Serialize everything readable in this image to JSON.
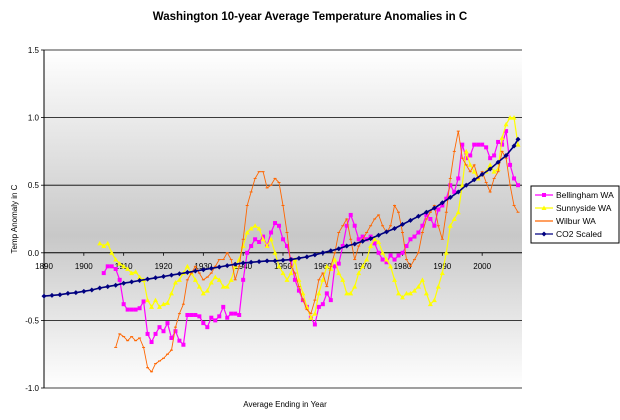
{
  "chart_data": {
    "type": "line",
    "title": "Washington 10-year Average Temperature Anomalies in C",
    "xlabel": "Average Ending in Year",
    "ylabel": "Temp Anomaly in C",
    "xlim": [
      1890,
      2010
    ],
    "ylim": [
      -1.0,
      1.5
    ],
    "yticks": [
      "1.5",
      "1.0",
      "0.5",
      "0.0",
      "-0.5",
      "-1.0"
    ],
    "xticks": [
      "1890",
      "1900",
      "1910",
      "1920",
      "1930",
      "1940",
      "1950",
      "1960",
      "1970",
      "1980",
      "1990",
      "2000"
    ],
    "grid": "horizontal",
    "legend_position": "right",
    "series": [
      {
        "name": "Bellingham WA",
        "color": "#ff00ff",
        "marker": "square",
        "x": [
          1905,
          1906,
          1907,
          1908,
          1909,
          1910,
          1911,
          1912,
          1913,
          1914,
          1915,
          1916,
          1917,
          1918,
          1919,
          1920,
          1921,
          1922,
          1923,
          1924,
          1925,
          1926,
          1927,
          1928,
          1929,
          1930,
          1931,
          1932,
          1933,
          1934,
          1935,
          1936,
          1937,
          1938,
          1939,
          1940,
          1941,
          1942,
          1943,
          1944,
          1945,
          1946,
          1947,
          1948,
          1949,
          1950,
          1951,
          1952,
          1953,
          1954,
          1955,
          1956,
          1957,
          1958,
          1959,
          1960,
          1961,
          1962,
          1963,
          1964,
          1965,
          1966,
          1967,
          1968,
          1969,
          1970,
          1971,
          1972,
          1973,
          1974,
          1975,
          1976,
          1977,
          1978,
          1979,
          1980,
          1981,
          1982,
          1983,
          1984,
          1985,
          1986,
          1987,
          1988,
          1989,
          1990,
          1991,
          1992,
          1993,
          1994,
          1995,
          1996,
          1997,
          1998,
          1999,
          2000,
          2001,
          2002,
          2003,
          2004,
          2005,
          2006,
          2007,
          2008,
          2009
        ],
        "values": [
          -0.15,
          -0.1,
          -0.1,
          -0.12,
          -0.2,
          -0.38,
          -0.42,
          -0.42,
          -0.42,
          -0.41,
          -0.36,
          -0.6,
          -0.66,
          -0.6,
          -0.55,
          -0.58,
          -0.52,
          -0.63,
          -0.58,
          -0.65,
          -0.68,
          -0.46,
          -0.46,
          -0.46,
          -0.47,
          -0.52,
          -0.55,
          -0.48,
          -0.5,
          -0.47,
          -0.4,
          -0.48,
          -0.45,
          -0.45,
          -0.46,
          -0.2,
          0.0,
          0.05,
          0.1,
          0.08,
          0.12,
          0.05,
          0.15,
          0.22,
          0.2,
          0.1,
          0.05,
          -0.05,
          -0.2,
          -0.28,
          -0.35,
          -0.4,
          -0.48,
          -0.53,
          -0.4,
          -0.38,
          -0.3,
          -0.35,
          -0.1,
          -0.08,
          0.05,
          0.2,
          0.28,
          0.2,
          0.1,
          0.12,
          0.1,
          0.12,
          0.07,
          0.0,
          -0.05,
          -0.07,
          -0.02,
          -0.05,
          -0.02,
          0.0,
          0.05,
          0.1,
          0.12,
          0.15,
          0.2,
          0.28,
          0.25,
          0.2,
          0.32,
          0.35,
          0.4,
          0.5,
          0.45,
          0.55,
          0.8,
          0.7,
          0.72,
          0.8,
          0.8,
          0.8,
          0.78,
          0.7,
          0.72,
          0.82,
          0.8,
          0.9,
          0.65,
          0.55,
          0.5
        ]
      },
      {
        "name": "Sunnyside WA",
        "color": "#ffff00",
        "marker": "triangle",
        "x": [
          1904,
          1905,
          1906,
          1907,
          1908,
          1909,
          1910,
          1911,
          1912,
          1913,
          1914,
          1915,
          1916,
          1917,
          1918,
          1919,
          1920,
          1921,
          1922,
          1923,
          1924,
          1925,
          1926,
          1927,
          1928,
          1929,
          1930,
          1931,
          1932,
          1933,
          1934,
          1935,
          1936,
          1937,
          1938,
          1939,
          1940,
          1941,
          1942,
          1943,
          1944,
          1945,
          1946,
          1947,
          1948,
          1949,
          1950,
          1951,
          1952,
          1953,
          1954,
          1955,
          1956,
          1957,
          1958,
          1959,
          1960,
          1961,
          1962,
          1963,
          1964,
          1965,
          1966,
          1967,
          1968,
          1969,
          1970,
          1971,
          1972,
          1973,
          1974,
          1975,
          1976,
          1977,
          1978,
          1979,
          1980,
          1981,
          1982,
          1983,
          1984,
          1985,
          1986,
          1987,
          1988,
          1989,
          1990,
          1991,
          1992,
          1993,
          1994,
          1995,
          1996,
          1997,
          1998,
          1999,
          2000,
          2001,
          2002,
          2003,
          2004,
          2005,
          2006,
          2007,
          2008,
          2009
        ],
        "values": [
          0.07,
          0.05,
          0.07,
          0.0,
          -0.05,
          -0.08,
          -0.1,
          -0.12,
          -0.15,
          -0.14,
          -0.18,
          -0.2,
          -0.35,
          -0.4,
          -0.35,
          -0.4,
          -0.38,
          -0.37,
          -0.3,
          -0.22,
          -0.2,
          -0.15,
          -0.1,
          -0.15,
          -0.2,
          -0.25,
          -0.3,
          -0.28,
          -0.22,
          -0.18,
          -0.2,
          -0.25,
          -0.25,
          -0.2,
          -0.1,
          -0.05,
          0.05,
          0.15,
          0.18,
          0.2,
          0.18,
          0.1,
          0.05,
          0.1,
          0.0,
          -0.1,
          -0.15,
          -0.2,
          -0.15,
          -0.05,
          -0.2,
          -0.3,
          -0.4,
          -0.48,
          -0.45,
          -0.3,
          -0.2,
          -0.1,
          -0.12,
          -0.05,
          -0.15,
          -0.2,
          -0.3,
          -0.3,
          -0.25,
          -0.15,
          -0.1,
          -0.05,
          0.05,
          0.1,
          0.08,
          0.0,
          -0.05,
          -0.1,
          -0.2,
          -0.3,
          -0.33,
          -0.3,
          -0.3,
          -0.28,
          -0.25,
          -0.2,
          -0.3,
          -0.38,
          -0.35,
          -0.25,
          -0.15,
          0.0,
          0.2,
          0.25,
          0.3,
          0.5,
          0.75,
          0.65,
          0.6,
          0.55,
          0.58,
          0.6,
          0.65,
          0.6,
          0.62,
          0.85,
          0.95,
          1.0,
          1.0,
          0.8
        ]
      },
      {
        "name": "Wilbur WA",
        "color": "#ff6600",
        "marker": "dash",
        "x": [
          1908,
          1909,
          1910,
          1911,
          1912,
          1913,
          1914,
          1915,
          1916,
          1917,
          1918,
          1919,
          1920,
          1921,
          1922,
          1923,
          1924,
          1925,
          1926,
          1927,
          1928,
          1929,
          1930,
          1931,
          1932,
          1933,
          1934,
          1935,
          1936,
          1937,
          1938,
          1939,
          1940,
          1941,
          1942,
          1943,
          1944,
          1945,
          1946,
          1947,
          1948,
          1949,
          1950,
          1951,
          1952,
          1953,
          1954,
          1955,
          1956,
          1957,
          1958,
          1959,
          1960,
          1961,
          1962,
          1963,
          1964,
          1965,
          1966,
          1967,
          1968,
          1969,
          1970,
          1971,
          1972,
          1973,
          1974,
          1975,
          1976,
          1977,
          1978,
          1979,
          1980,
          1981,
          1982,
          1983,
          1984,
          1985,
          1986,
          1987,
          1988,
          1989,
          1990,
          1991,
          1992,
          1993,
          1994,
          1995,
          1996,
          1997,
          1998,
          1999,
          2000,
          2001,
          2002,
          2003,
          2004,
          2005,
          2006,
          2007,
          2008,
          2009
        ],
        "values": [
          -0.7,
          -0.6,
          -0.62,
          -0.65,
          -0.62,
          -0.65,
          -0.63,
          -0.7,
          -0.85,
          -0.88,
          -0.82,
          -0.8,
          -0.78,
          -0.75,
          -0.72,
          -0.55,
          -0.45,
          -0.38,
          -0.2,
          -0.15,
          -0.1,
          -0.15,
          -0.2,
          -0.18,
          -0.15,
          -0.1,
          -0.05,
          -0.05,
          0.0,
          -0.05,
          -0.2,
          -0.1,
          0.1,
          0.35,
          0.45,
          0.55,
          0.6,
          0.6,
          0.48,
          0.5,
          0.55,
          0.52,
          0.35,
          0.15,
          -0.1,
          -0.15,
          -0.25,
          -0.35,
          -0.42,
          -0.45,
          -0.35,
          -0.2,
          -0.15,
          -0.25,
          -0.1,
          0.0,
          0.15,
          0.2,
          0.25,
          0.1,
          -0.05,
          0.05,
          0.1,
          0.15,
          0.2,
          0.25,
          0.28,
          0.2,
          0.15,
          0.2,
          0.35,
          0.3,
          0.15,
          -0.05,
          -0.1,
          -0.05,
          0.0,
          0.15,
          0.25,
          0.3,
          0.35,
          0.2,
          0.1,
          0.3,
          0.55,
          0.75,
          0.9,
          0.7,
          0.65,
          0.6,
          0.65,
          0.55,
          0.6,
          0.52,
          0.45,
          0.55,
          0.6,
          0.75,
          0.7,
          0.5,
          0.35,
          0.3
        ]
      },
      {
        "name": "CO2 Scaled",
        "color": "#000080",
        "marker": "diamond",
        "x": [
          1890,
          1892,
          1894,
          1896,
          1898,
          1900,
          1902,
          1904,
          1906,
          1908,
          1910,
          1912,
          1914,
          1916,
          1918,
          1920,
          1922,
          1924,
          1926,
          1928,
          1930,
          1932,
          1934,
          1936,
          1938,
          1940,
          1942,
          1944,
          1946,
          1948,
          1950,
          1952,
          1954,
          1956,
          1958,
          1960,
          1962,
          1964,
          1966,
          1968,
          1970,
          1972,
          1974,
          1976,
          1978,
          1980,
          1982,
          1984,
          1986,
          1988,
          1990,
          1992,
          1994,
          1996,
          1998,
          2000,
          2002,
          2004,
          2006,
          2008,
          2009
        ],
        "values": [
          -0.32,
          -0.315,
          -0.31,
          -0.3,
          -0.295,
          -0.285,
          -0.275,
          -0.26,
          -0.25,
          -0.24,
          -0.225,
          -0.215,
          -0.205,
          -0.195,
          -0.185,
          -0.175,
          -0.165,
          -0.155,
          -0.145,
          -0.135,
          -0.125,
          -0.115,
          -0.105,
          -0.095,
          -0.085,
          -0.075,
          -0.07,
          -0.065,
          -0.06,
          -0.06,
          -0.055,
          -0.05,
          -0.04,
          -0.03,
          -0.015,
          0.0,
          0.015,
          0.03,
          0.05,
          0.065,
          0.085,
          0.105,
          0.13,
          0.155,
          0.18,
          0.21,
          0.24,
          0.27,
          0.3,
          0.33,
          0.37,
          0.41,
          0.45,
          0.5,
          0.54,
          0.58,
          0.62,
          0.67,
          0.72,
          0.79,
          0.84
        ]
      }
    ]
  }
}
